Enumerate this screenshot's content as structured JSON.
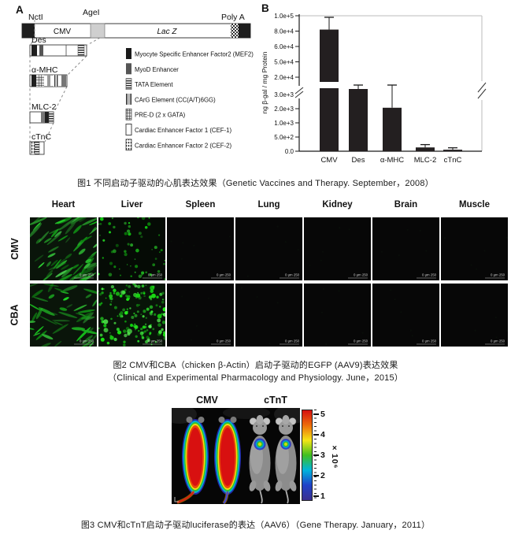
{
  "fig1": {
    "panel_label_a": "A",
    "panel_label_b": "B",
    "construct": {
      "restriction_site_left": "NctI",
      "restriction_site_mid": "AgeI",
      "poly_a": "Poly A",
      "promoter": "CMV",
      "reporter": "Lac Z"
    },
    "sub_constructs": [
      "Des",
      "α-MHC",
      "MLC-2",
      "cTnC"
    ],
    "legend": [
      {
        "pattern": "solid-black",
        "label": "Myocyte Specific Enhancer Factor2 (MEF2)"
      },
      {
        "pattern": "solid-gray",
        "label": "MyoD Enhancer"
      },
      {
        "pattern": "h-stripes",
        "label": "TATA Element"
      },
      {
        "pattern": "v-bar",
        "label": "CArG Element (CC(A/T)6GG)"
      },
      {
        "pattern": "grid",
        "label": "PRE-D (2 x GATA)"
      },
      {
        "pattern": "outline",
        "label": "Cardiac Enhancer Factor 1 (CEF-1)"
      },
      {
        "pattern": "dashes",
        "label": "Cardiac Enhancer Factor 2 (CEF-2)"
      }
    ],
    "caption": "图1 不同启动子驱动的心肌表达效果（Genetic Vaccines and Therapy. September，2008）"
  },
  "chart_data": {
    "type": "bar",
    "title": "",
    "xlabel": "",
    "ylabel": "ng β-gal / mg Protein",
    "categories": [
      "CMV",
      "Des",
      "α-MHC",
      "MLC-2",
      "cTnC"
    ],
    "values": [
      82000,
      3300,
      2300,
      200,
      80
    ],
    "errors": [
      16000,
      200,
      1200,
      150,
      100
    ],
    "bar_color": "#231f20",
    "broken_axis": true,
    "upper_ticks": [
      "1.0e+5",
      "8.0e+4",
      "6.0e+4",
      "5.0e+4",
      "2.0e+4"
    ],
    "upper_range": [
      20000,
      100000
    ],
    "lower_ticks": [
      "3.0e+3",
      "2.0e+3",
      "1.0e+3",
      "5.0e+2",
      "0.0"
    ],
    "lower_range": [
      0,
      3000
    ],
    "grid": false,
    "legend_position": "none"
  },
  "fig2": {
    "columns": [
      "Heart",
      "Liver",
      "Spleen",
      "Lung",
      "Kidney",
      "Brain",
      "Muscle"
    ],
    "rows": [
      "CMV",
      "CBA"
    ],
    "scale_bar_text": "0   µm 250",
    "panels": [
      [
        {
          "signal": "fibers",
          "density": 0.95,
          "brightness": 0.9
        },
        {
          "signal": "dots",
          "density": 0.45,
          "brightness": 0.7
        },
        {
          "signal": "dark"
        },
        {
          "signal": "dark"
        },
        {
          "signal": "dark"
        },
        {
          "signal": "dark"
        },
        {
          "signal": "dark"
        }
      ],
      [
        {
          "signal": "fibers",
          "density": 0.7,
          "brightness": 0.75
        },
        {
          "signal": "dots",
          "density": 1,
          "brightness": 1
        },
        {
          "signal": "dark"
        },
        {
          "signal": "dark"
        },
        {
          "signal": "dark"
        },
        {
          "signal": "dark"
        },
        {
          "signal": "dark"
        }
      ]
    ],
    "caption_line1": "图2 CMV和CBA（chicken β-Actin）启动子驱动的EGFP (AAV9)表达效果",
    "caption_line2": "（Clinical and Experimental Pharmacology and Physiology. June，2015）"
  },
  "fig3": {
    "group_labels": [
      "CMV",
      "cTnT"
    ],
    "colorbar": {
      "tick_labels": [
        "5",
        "4",
        "3",
        "2",
        "1"
      ],
      "unit": "×10⁶",
      "gradient": [
        "#d51010",
        "#ed6c0c",
        "#f5e516",
        "#3fbf20",
        "#00b4dc",
        "#1f41c8",
        "#3a2f8e"
      ]
    },
    "caption": "图3 CMV和cTnT启动子驱动luciferase的表达（AAV6）（Gene Therapy. January，2011）"
  }
}
